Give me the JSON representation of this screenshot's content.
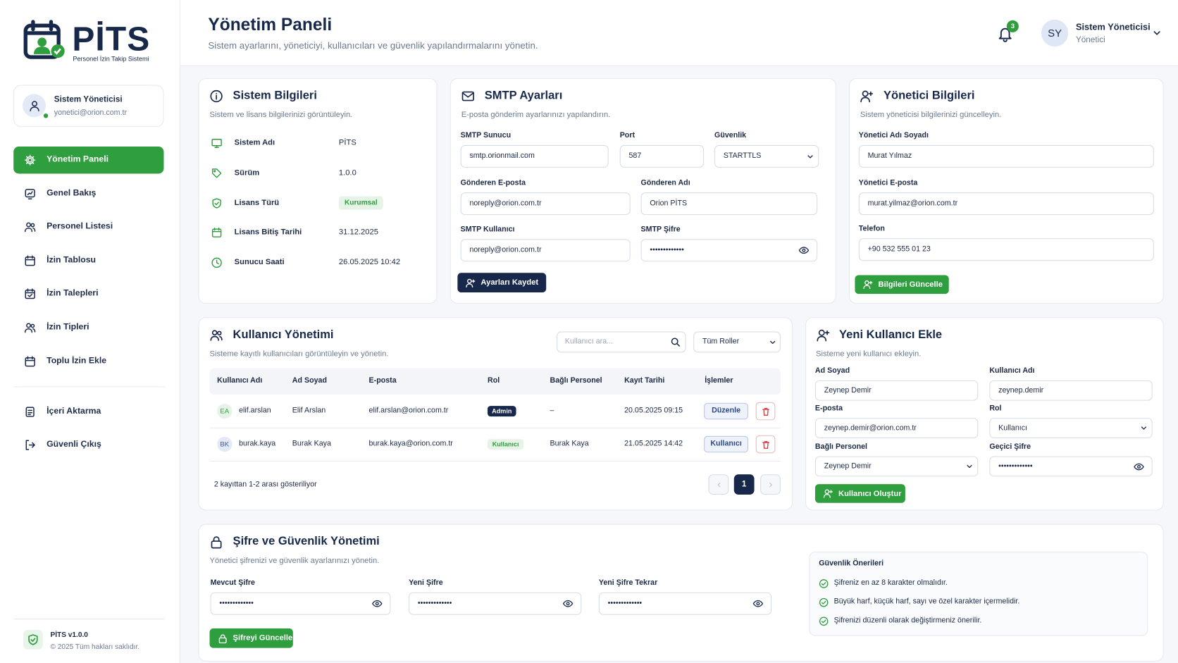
{
  "sidebar": {
    "brand": "PİTS",
    "brand_subtitle": "Personel İzin Takip Sistemi",
    "user": {
      "name": "Sistem Yöneticisi",
      "email": "yonetici@orion.com.tr"
    },
    "menu": [
      "Yönetim Paneli",
      "Genel Bakış",
      "Personel Listesi",
      "İzin Tablosu",
      "İzin Talepleri",
      "İzin Tipleri",
      "Toplu İzin Ekle"
    ],
    "menu_bottom": [
      "İçeri Aktarma",
      "Güvenli Çıkış"
    ],
    "version": "PİTS v1.0.0",
    "copyright": "© 2025 Tüm hakları saklıdır."
  },
  "header": {
    "title": "Yönetim Paneli",
    "subtitle": "Sistem ayarlarını, yöneticiyi, kullanıcıları ve güvenlik yapılandırmalarını yönetin.",
    "notification_count": "3",
    "avatar": "SY",
    "user_name": "Sistem Yöneticisi",
    "user_role": "Yönetici"
  },
  "system_info": {
    "title": "Sistem Bilgileri",
    "subtitle": "Sistem ve lisans bilgilerinizi görüntüleyin.",
    "rows": [
      {
        "label": "Sistem Adı",
        "value": "PİTS"
      },
      {
        "label": "Sürüm",
        "value": "1.0.0"
      },
      {
        "label": "Lisans Türü",
        "value": "Kurumsal"
      },
      {
        "label": "Lisans Bitiş Tarihi",
        "value": "31.12.2025"
      },
      {
        "label": "Sunucu Saati",
        "value": "26.05.2025 10:42"
      }
    ]
  },
  "smtp": {
    "title": "SMTP Ayarları",
    "subtitle": "E-posta gönderim ayarlarınızı yapılandırın.",
    "fields": [
      {
        "label": "SMTP Sunucu",
        "value": "smtp.orionmail.com"
      },
      {
        "label": "Port",
        "value": "587"
      },
      {
        "label": "Güvenlik",
        "value": "STARTTLS"
      },
      {
        "label": "Gönderen E-posta",
        "value": "noreply@orion.com.tr"
      },
      {
        "label": "Gönderen Adı",
        "value": "Orion PİTS"
      },
      {
        "label": "SMTP Kullanıcı",
        "value": "noreply@orion.com.tr"
      },
      {
        "label": "SMTP Şifre",
        "value": "•••••••••••••"
      }
    ],
    "button": "Ayarları Kaydet"
  },
  "admin": {
    "title": "Yönetici Bilgileri",
    "subtitle": "Sistem yöneticisi bilgilerinizi güncelleyin.",
    "fields": [
      {
        "label": "Yönetici Adı Soyadı",
        "value": "Murat Yılmaz"
      },
      {
        "label": "Yönetici E-posta",
        "value": "murat.yilmaz@orion.com.tr"
      },
      {
        "label": "Telefon",
        "value": "+90 532 555 01 23"
      }
    ],
    "button": "Bilgileri Güncelle"
  },
  "users": {
    "title": "Kullanıcı Yönetimi",
    "subtitle": "Sisteme kayıtlı kullanıcıları görüntüleyin ve yönetin.",
    "search_placeholder": "Kullanıcı ara...",
    "role_filter": "Tüm Roller",
    "columns": [
      "Kullanıcı Adı",
      "Ad Soyad",
      "E-posta",
      "Rol",
      "Bağlı Personel",
      "Kayıt Tarihi",
      "İşlemler"
    ],
    "rows": [
      {
        "initials": "EA",
        "username": "elif.arslan",
        "full_name": "Elif Arslan",
        "email": "elif.arslan@orion.com.tr",
        "role": "Admin",
        "staff": "–",
        "created": "20.05.2025 09:15",
        "action": "Düzenle"
      },
      {
        "initials": "BK",
        "username": "burak.kaya",
        "full_name": "Burak Kaya",
        "email": "burak.kaya@orion.com.tr",
        "role": "Kullanıcı",
        "staff": "Burak Kaya",
        "created": "21.05.2025 14:42",
        "action": "Kullanıcı"
      }
    ],
    "summary": "2 kayıttan 1-2 arası gösteriliyor",
    "page": "1"
  },
  "new_user": {
    "title": "Yeni Kullanıcı Ekle",
    "subtitle": "Sisteme yeni kullanıcı ekleyin.",
    "fields": [
      {
        "label": "Ad Soyad",
        "value": "Zeynep Demir"
      },
      {
        "label": "Kullanıcı Adı",
        "value": "zeynep.demir"
      },
      {
        "label": "E-posta",
        "value": "zeynep.demir@orion.com.tr"
      },
      {
        "label": "Rol",
        "value": "Kullanıcı"
      },
      {
        "label": "Bağlı Personel",
        "value": "Zeynep Demir"
      },
      {
        "label": "Geçici Şifre",
        "value": "•••••••••••••"
      }
    ],
    "button": "Kullanıcı Oluştur"
  },
  "password": {
    "title": "Şifre ve Güvenlik Yönetimi",
    "subtitle": "Yönetici şifrenizi ve güvenlik ayarlarınızı yönetin.",
    "fields": [
      {
        "label": "Mevcut Şifre",
        "value": "•••••••••••••"
      },
      {
        "label": "Yeni Şifre",
        "value": "•••••••••••••"
      },
      {
        "label": "Yeni Şifre Tekrar",
        "value": "•••••••••••••"
      }
    ],
    "button": "Şifreyi Güncelle",
    "tips_title": "Güvenlik Önerileri",
    "tips": [
      "Şifreniz en az 8 karakter olmalıdır.",
      "Büyük harf, küçük harf, sayı ve özel karakter içermelidir.",
      "Şifrenizi düzenli olarak değiştirmeniz önerilir."
    ]
  }
}
